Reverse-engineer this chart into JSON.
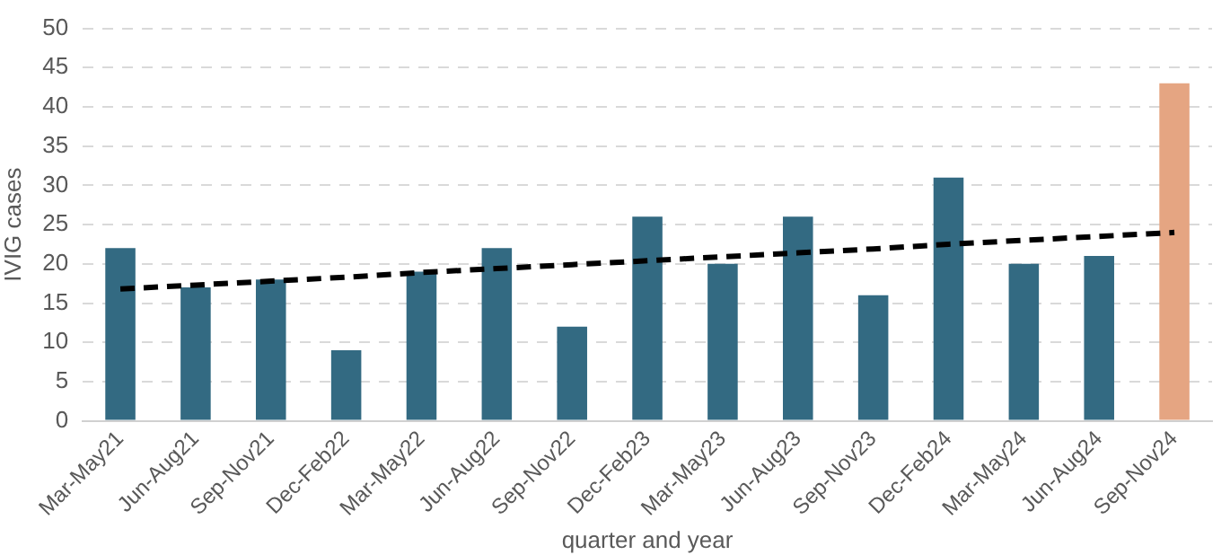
{
  "chart_data": {
    "type": "bar",
    "xlabel": "quarter and year",
    "ylabel": "IVIG cases",
    "categories": [
      "Mar-May21",
      "Jun-Aug21",
      "Sep-Nov21",
      "Dec-Feb22",
      "Mar-May22",
      "Jun-Aug22",
      "Sep-Nov22",
      "Dec-Feb23",
      "Mar-May23",
      "Jun-Aug23",
      "Sep-Nov23",
      "Dec-Feb24",
      "Mar-May24",
      "Jun-Aug24",
      "Sep-Nov24"
    ],
    "series": [
      {
        "values": [
          22,
          17,
          18,
          9,
          19,
          22,
          12,
          26,
          20,
          26,
          16,
          31,
          20,
          21,
          43
        ],
        "colors": [
          "#336a82",
          "#336a82",
          "#336a82",
          "#336a82",
          "#336a82",
          "#336a82",
          "#336a82",
          "#336a82",
          "#336a82",
          "#336a82",
          "#336a82",
          "#336a82",
          "#336a82",
          "#336a82",
          "#e5a582"
        ]
      },
      {
        "type": "line",
        "color": "#000000",
        "line_style": "dashed",
        "marker": "none",
        "values": [
          16.8,
          17.3,
          17.8,
          18.3,
          18.9,
          19.4,
          19.9,
          20.4,
          20.9,
          21.4,
          21.9,
          22.5,
          23.0,
          23.5,
          24.0
        ]
      }
    ],
    "ylim": [
      0,
      50
    ],
    "yticks": [
      0,
      5,
      10,
      15,
      20,
      25,
      30,
      35,
      40,
      45,
      50
    ],
    "grid": "y"
  }
}
